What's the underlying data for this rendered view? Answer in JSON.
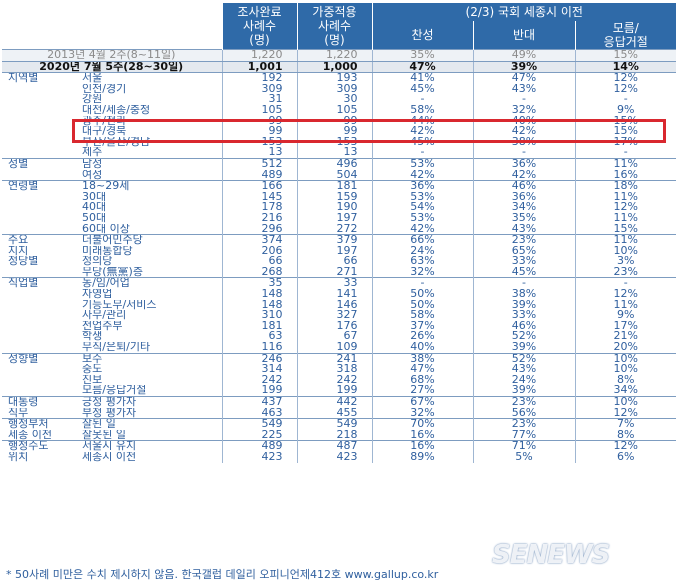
{
  "header": {
    "col_sample": "조사완료\n사례수\n(명)",
    "col_weighted": "가중적용\n사례수\n(명)",
    "col_group": "(2/3) 국회 세종시 이전",
    "col_agree": "찬성",
    "col_oppose": "반대",
    "col_dk": "모름/\n응답거절"
  },
  "rows": [
    {
      "g": "",
      "s": "2013년 4월 2주(8~11일)",
      "n": "1,220",
      "w": "1,220",
      "a": "35%",
      "o": "49%",
      "d": "15%",
      "cls": "r2013"
    },
    {
      "g": "",
      "s": "2020년 7월 5주(28~30일)",
      "n": "1,001",
      "w": "1,000",
      "a": "47%",
      "o": "39%",
      "d": "14%",
      "cls": "r2020"
    },
    {
      "g": "지역별",
      "s": "서울",
      "n": "192",
      "w": "193",
      "a": "41%",
      "o": "47%",
      "d": "12%",
      "cls": "gs"
    },
    {
      "g": "",
      "s": "인천/경기",
      "n": "309",
      "w": "309",
      "a": "45%",
      "o": "43%",
      "d": "12%"
    },
    {
      "g": "",
      "s": "강원",
      "n": "31",
      "w": "30",
      "a": "-",
      "o": "-",
      "d": "-"
    },
    {
      "g": "",
      "s": "대전/세종/충청",
      "n": "105",
      "w": "105",
      "a": "58%",
      "o": "32%",
      "d": "9%"
    },
    {
      "g": "",
      "s": "광주/전라",
      "n": "99",
      "w": "99",
      "a": "44%",
      "o": "40%",
      "d": "15%"
    },
    {
      "g": "",
      "s": "대구/경북",
      "n": "99",
      "w": "99",
      "a": "42%",
      "o": "42%",
      "d": "15%"
    },
    {
      "g": "",
      "s": "부산/울산/경남",
      "n": "153",
      "w": "153",
      "a": "45%",
      "o": "38%",
      "d": "17%"
    },
    {
      "g": "",
      "s": "제주",
      "n": "13",
      "w": "13",
      "a": "-",
      "o": "-",
      "d": "-"
    },
    {
      "g": "성별",
      "s": "남성",
      "n": "512",
      "w": "496",
      "a": "53%",
      "o": "36%",
      "d": "11%",
      "cls": "gs"
    },
    {
      "g": "",
      "s": "여성",
      "n": "489",
      "w": "504",
      "a": "42%",
      "o": "42%",
      "d": "16%"
    },
    {
      "g": "연령별",
      "s": "18~29세",
      "n": "166",
      "w": "181",
      "a": "36%",
      "o": "46%",
      "d": "18%",
      "cls": "gs"
    },
    {
      "g": "",
      "s": "30대",
      "n": "145",
      "w": "159",
      "a": "53%",
      "o": "36%",
      "d": "11%"
    },
    {
      "g": "",
      "s": "40대",
      "n": "178",
      "w": "190",
      "a": "54%",
      "o": "34%",
      "d": "12%"
    },
    {
      "g": "",
      "s": "50대",
      "n": "216",
      "w": "197",
      "a": "53%",
      "o": "35%",
      "d": "11%"
    },
    {
      "g": "",
      "s": "60대 이상",
      "n": "296",
      "w": "272",
      "a": "42%",
      "o": "43%",
      "d": "15%"
    },
    {
      "g": "주요",
      "s": "더불어민주당",
      "n": "374",
      "w": "379",
      "a": "66%",
      "o": "23%",
      "d": "11%",
      "cls": "gs"
    },
    {
      "g": "지지",
      "s": "미래통합당",
      "n": "206",
      "w": "197",
      "a": "24%",
      "o": "65%",
      "d": "10%"
    },
    {
      "g": "정당별",
      "s": "정의당",
      "n": "66",
      "w": "66",
      "a": "63%",
      "o": "33%",
      "d": "3%"
    },
    {
      "g": "",
      "s": "무당(無黨)층",
      "n": "268",
      "w": "271",
      "a": "32%",
      "o": "45%",
      "d": "23%"
    },
    {
      "g": "직업별",
      "s": "농/임/어업",
      "n": "35",
      "w": "33",
      "a": "-",
      "o": "-",
      "d": "-",
      "cls": "gs"
    },
    {
      "g": "",
      "s": "자영업",
      "n": "148",
      "w": "141",
      "a": "50%",
      "o": "38%",
      "d": "12%"
    },
    {
      "g": "",
      "s": "기능노무/서비스",
      "n": "148",
      "w": "146",
      "a": "50%",
      "o": "39%",
      "d": "11%"
    },
    {
      "g": "",
      "s": "사무/관리",
      "n": "310",
      "w": "327",
      "a": "58%",
      "o": "33%",
      "d": "9%"
    },
    {
      "g": "",
      "s": "전업주부",
      "n": "181",
      "w": "176",
      "a": "37%",
      "o": "46%",
      "d": "17%"
    },
    {
      "g": "",
      "s": "학생",
      "n": "63",
      "w": "67",
      "a": "26%",
      "o": "52%",
      "d": "21%"
    },
    {
      "g": "",
      "s": "무직/은퇴/기타",
      "n": "116",
      "w": "109",
      "a": "40%",
      "o": "39%",
      "d": "20%"
    },
    {
      "g": "성향별",
      "s": "보수",
      "n": "246",
      "w": "241",
      "a": "38%",
      "o": "52%",
      "d": "10%",
      "cls": "gs"
    },
    {
      "g": "",
      "s": "중도",
      "n": "314",
      "w": "318",
      "a": "47%",
      "o": "43%",
      "d": "10%"
    },
    {
      "g": "",
      "s": "진보",
      "n": "242",
      "w": "242",
      "a": "68%",
      "o": "24%",
      "d": "8%"
    },
    {
      "g": "",
      "s": "모름/응답거절",
      "n": "199",
      "w": "199",
      "a": "27%",
      "o": "39%",
      "d": "34%"
    },
    {
      "g": "대통령",
      "s": "긍정 평가자",
      "n": "437",
      "w": "442",
      "a": "67%",
      "o": "23%",
      "d": "10%",
      "cls": "gs"
    },
    {
      "g": "직무",
      "s": "부정 평가자",
      "n": "463",
      "w": "455",
      "a": "32%",
      "o": "56%",
      "d": "12%"
    },
    {
      "g": "행정부처",
      "s": "잘된 일",
      "n": "549",
      "w": "549",
      "a": "70%",
      "o": "23%",
      "d": "7%",
      "cls": "gs"
    },
    {
      "g": "세종 이전",
      "s": "잘못된 일",
      "n": "225",
      "w": "218",
      "a": "16%",
      "o": "77%",
      "d": "8%"
    },
    {
      "g": "행정수도",
      "s": "서울시 유지",
      "n": "489",
      "w": "487",
      "a": "16%",
      "o": "71%",
      "d": "12%",
      "cls": "gs"
    },
    {
      "g": "위치",
      "s": "세종시 이전",
      "n": "423",
      "w": "423",
      "a": "89%",
      "o": "5%",
      "d": "6%"
    }
  ],
  "footnote": "* 50사례 미만은 수치 제시하지 않음. 한국갤럽 데일리 오피니언제412호 www.gallup.co.kr",
  "watermark": "SENEWS",
  "colors": {
    "header_bg": "#2f6aa8",
    "text": "#2f5f9e",
    "highlight": "#d9282f"
  }
}
